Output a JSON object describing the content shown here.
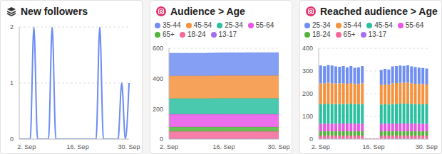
{
  "chart_data": [
    {
      "type": "line",
      "title": "New followers",
      "color": "#6b8cf2",
      "categories": [
        null,
        null,
        "2. Sep",
        null,
        null,
        null,
        null,
        null,
        null,
        null,
        null,
        null,
        null,
        null,
        null,
        null,
        "16. Sep",
        null,
        null,
        null,
        null,
        null,
        null,
        null,
        null,
        null,
        null,
        null,
        null,
        null,
        "30. Sep"
      ],
      "values": [
        0,
        0,
        0,
        0,
        2,
        0,
        0,
        0,
        0,
        2,
        0,
        0,
        0,
        0,
        0,
        0,
        0,
        0,
        0,
        0,
        0,
        0,
        2,
        0,
        0,
        0,
        0,
        0,
        1,
        0,
        1
      ],
      "ylim": [
        0,
        2
      ],
      "yticks": [
        0,
        1,
        2
      ],
      "grid": true
    },
    {
      "type": "area",
      "title": "Audience > Age",
      "stacked": true,
      "legend": "top",
      "categories": [
        "2. Sep",
        null,
        null,
        null,
        null,
        null,
        null,
        null,
        null,
        null,
        null,
        null,
        null,
        null,
        "16. Sep",
        null,
        null,
        null,
        null,
        null,
        null,
        null,
        null,
        null,
        null,
        null,
        null,
        null,
        "30. Sep"
      ],
      "series": [
        {
          "name": "35-44",
          "color": "#6f8ef2",
          "values": [
            148,
            148,
            148,
            148,
            148,
            148,
            148,
            148,
            148,
            148,
            149,
            149,
            149,
            149,
            149,
            149,
            149,
            149,
            149,
            149,
            150,
            150,
            150,
            150,
            150,
            150,
            150,
            150,
            150
          ]
        },
        {
          "name": "45-54",
          "color": "#f5923e",
          "values": [
            150,
            150,
            150,
            150,
            150,
            150,
            150,
            150,
            150,
            150,
            150,
            150,
            150,
            150,
            150,
            151,
            151,
            151,
            151,
            151,
            151,
            151,
            151,
            151,
            151,
            151,
            151,
            151,
            151
          ]
        },
        {
          "name": "25-34",
          "color": "#2bc0a0",
          "values": [
            104,
            104,
            104,
            104,
            104,
            104,
            104,
            104,
            104,
            104,
            104,
            104,
            105,
            105,
            105,
            105,
            105,
            105,
            105,
            105,
            105,
            105,
            105,
            105,
            105,
            105,
            105,
            105,
            105
          ]
        },
        {
          "name": "55-64",
          "color": "#e856e6",
          "values": [
            84,
            84,
            84,
            84,
            84,
            84,
            84,
            84,
            84,
            84,
            84,
            84,
            84,
            84,
            84,
            84,
            84,
            84,
            84,
            84,
            84,
            84,
            84,
            84,
            84,
            84,
            84,
            84,
            84
          ]
        },
        {
          "name": "65+",
          "color": "#52b339",
          "values": [
            30,
            30,
            30,
            30,
            30,
            30,
            30,
            30,
            30,
            30,
            30,
            30,
            30,
            30,
            30,
            30,
            30,
            30,
            30,
            30,
            30,
            30,
            30,
            30,
            30,
            30,
            30,
            30,
            30
          ]
        },
        {
          "name": "18-24",
          "color": "#f4679a",
          "values": [
            48,
            48,
            48,
            48,
            48,
            48,
            48,
            48,
            48,
            48,
            48,
            48,
            48,
            48,
            48,
            48,
            48,
            48,
            48,
            48,
            48,
            48,
            48,
            48,
            48,
            48,
            48,
            48,
            48
          ]
        },
        {
          "name": "13-17",
          "color": "#a66df2",
          "values": [
            2,
            2,
            2,
            2,
            2,
            2,
            2,
            2,
            2,
            2,
            2,
            2,
            2,
            2,
            2,
            2,
            2,
            2,
            2,
            2,
            2,
            2,
            2,
            2,
            2,
            2,
            2,
            2,
            2
          ]
        }
      ],
      "ylim": [
        0,
        600
      ],
      "yticks": [
        0,
        200,
        400,
        600
      ],
      "grid": true
    },
    {
      "type": "bar",
      "title": "Reached audience > Age",
      "stacked": true,
      "legend": "top",
      "categories": [
        "2. Sep",
        null,
        null,
        null,
        null,
        null,
        null,
        null,
        null,
        null,
        null,
        null,
        null,
        null,
        "16. Sep",
        null,
        null,
        null,
        null,
        null,
        null,
        null,
        null,
        null,
        null,
        null,
        null,
        null,
        "30. Sep"
      ],
      "series": [
        {
          "name": "25-34",
          "color": "#6f8ef2",
          "values": [
            78,
            76,
            77,
            78,
            75,
            74,
            76,
            72,
            75,
            71,
            73,
            76,
            0,
            0,
            0,
            0,
            66,
            68,
            67,
            74,
            75,
            76,
            75,
            76,
            74,
            73,
            72,
            71,
            70
          ]
        },
        {
          "name": "35-44",
          "color": "#f5923e",
          "values": [
            92,
            91,
            93,
            92,
            90,
            90,
            91,
            89,
            91,
            88,
            89,
            91,
            0,
            0,
            0,
            0,
            86,
            88,
            87,
            91,
            92,
            92,
            92,
            93,
            91,
            90,
            89,
            89,
            88
          ]
        },
        {
          "name": "45-54",
          "color": "#2bc0a0",
          "values": [
            86,
            86,
            87,
            86,
            87,
            86,
            86,
            86,
            87,
            86,
            86,
            86,
            0,
            0,
            0,
            0,
            84,
            84,
            84,
            86,
            86,
            87,
            87,
            87,
            86,
            86,
            86,
            85,
            85
          ]
        },
        {
          "name": "55-64",
          "color": "#e856e6",
          "values": [
            34,
            34,
            35,
            34,
            34,
            35,
            35,
            35,
            35,
            35,
            34,
            35,
            0,
            0,
            0,
            0,
            34,
            35,
            34,
            35,
            35,
            35,
            35,
            35,
            35,
            34,
            34,
            34,
            34
          ]
        },
        {
          "name": "18-24",
          "color": "#52b339",
          "values": [
            18,
            18,
            18,
            18,
            18,
            18,
            18,
            18,
            18,
            18,
            18,
            18,
            0,
            0,
            0,
            0,
            18,
            18,
            18,
            18,
            18,
            18,
            18,
            18,
            18,
            18,
            18,
            18,
            18
          ]
        },
        {
          "name": "65+",
          "color": "#f4679a",
          "values": [
            14,
            14,
            14,
            14,
            14,
            14,
            14,
            14,
            14,
            14,
            14,
            14,
            3,
            3,
            3,
            3,
            14,
            14,
            14,
            14,
            14,
            14,
            14,
            14,
            14,
            14,
            14,
            14,
            14
          ]
        },
        {
          "name": "13-17",
          "color": "#a66df2",
          "values": [
            2,
            2,
            2,
            2,
            2,
            2,
            2,
            2,
            2,
            2,
            2,
            2,
            0,
            0,
            0,
            0,
            2,
            2,
            2,
            2,
            2,
            2,
            2,
            2,
            2,
            2,
            2,
            2,
            2
          ]
        }
      ],
      "ylim": [
        0,
        400
      ],
      "yticks": [
        0,
        100,
        200,
        300,
        400
      ],
      "grid": true
    }
  ]
}
